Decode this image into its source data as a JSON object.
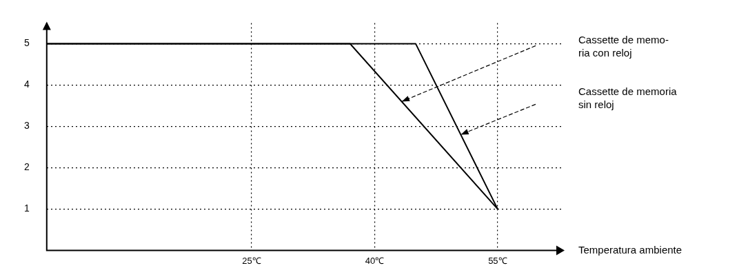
{
  "chart_data": {
    "type": "line",
    "xlabel": "Temperatura ambiente",
    "xlim": [
      0,
      63
    ],
    "ylim": [
      0,
      5.5
    ],
    "xticks": [
      {
        "value": 25,
        "label": "25℃"
      },
      {
        "value": 40,
        "label": "40℃"
      },
      {
        "value": 55,
        "label": "55℃"
      }
    ],
    "yticks": [
      1,
      2,
      3,
      4,
      5
    ],
    "series": [
      {
        "color": "#000000",
        "x": [
          0,
          37,
          55
        ],
        "values": [
          5,
          5,
          1
        ]
      },
      {
        "color": "#000000",
        "x": [
          0,
          45,
          55
        ],
        "values": [
          5,
          5,
          1
        ]
      }
    ],
    "annotations": [
      "Cassette de memo-\nria con reloj",
      "Cassette de memoria\nsin reloj"
    ],
    "grid": true,
    "legend": false,
    "marker": "none",
    "line_style": "solid"
  }
}
